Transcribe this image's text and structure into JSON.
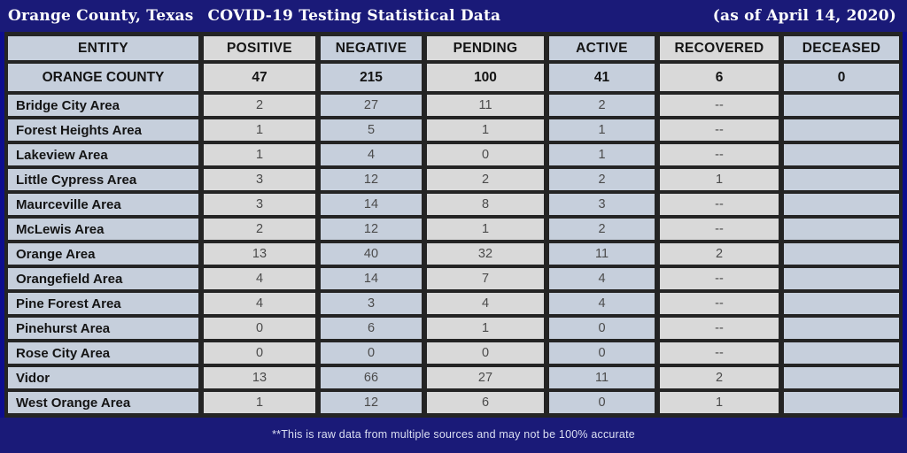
{
  "header": {
    "title_left": "Orange County, Texas",
    "title_main": "COVID-19 Testing Statistical Data",
    "title_right": "(as of April 14, 2020)"
  },
  "colors": {
    "background_navy": "#1a1a78",
    "cell_blue": "#c6cfdc",
    "cell_gray": "#d9d9d9",
    "grid_black": "#242424",
    "edge_blue": "#0d0d8e",
    "title_text": "#ffffff"
  },
  "chart_data": {
    "type": "table",
    "title": "Orange County, Texas COVID-19 Testing Statistical Data (as of April 14, 2020)",
    "columns": [
      "ENTITY",
      "POSITIVE",
      "NEGATIVE",
      "PENDING",
      "ACTIVE",
      "RECOVERED",
      "DECEASED"
    ],
    "summary": [
      "ORANGE COUNTY",
      "47",
      "215",
      "100",
      "41",
      "6",
      "0"
    ],
    "rows": [
      [
        "Bridge City Area",
        "2",
        "27",
        "11",
        "2",
        "--",
        ""
      ],
      [
        "Forest Heights Area",
        "1",
        "5",
        "1",
        "1",
        "--",
        ""
      ],
      [
        "Lakeview Area",
        "1",
        "4",
        "0",
        "1",
        "--",
        ""
      ],
      [
        "Little Cypress Area",
        "3",
        "12",
        "2",
        "2",
        "1",
        ""
      ],
      [
        "Maurceville Area",
        "3",
        "14",
        "8",
        "3",
        "--",
        ""
      ],
      [
        "McLewis Area",
        "2",
        "12",
        "1",
        "2",
        "--",
        ""
      ],
      [
        "Orange Area",
        "13",
        "40",
        "32",
        "11",
        "2",
        ""
      ],
      [
        "Orangefield Area",
        "4",
        "14",
        "7",
        "4",
        "--",
        ""
      ],
      [
        "Pine Forest Area",
        "4",
        "3",
        "4",
        "4",
        "--",
        ""
      ],
      [
        "Pinehurst Area",
        "0",
        "6",
        "1",
        "0",
        "--",
        ""
      ],
      [
        "Rose City Area",
        "0",
        "0",
        "0",
        "0",
        "--",
        ""
      ],
      [
        "Vidor",
        "13",
        "66",
        "27",
        "11",
        "2",
        ""
      ],
      [
        "West Orange Area",
        "1",
        "12",
        "6",
        "0",
        "1",
        ""
      ]
    ],
    "note": "**This is raw data from multiple sources and may not be 100% accurate"
  }
}
